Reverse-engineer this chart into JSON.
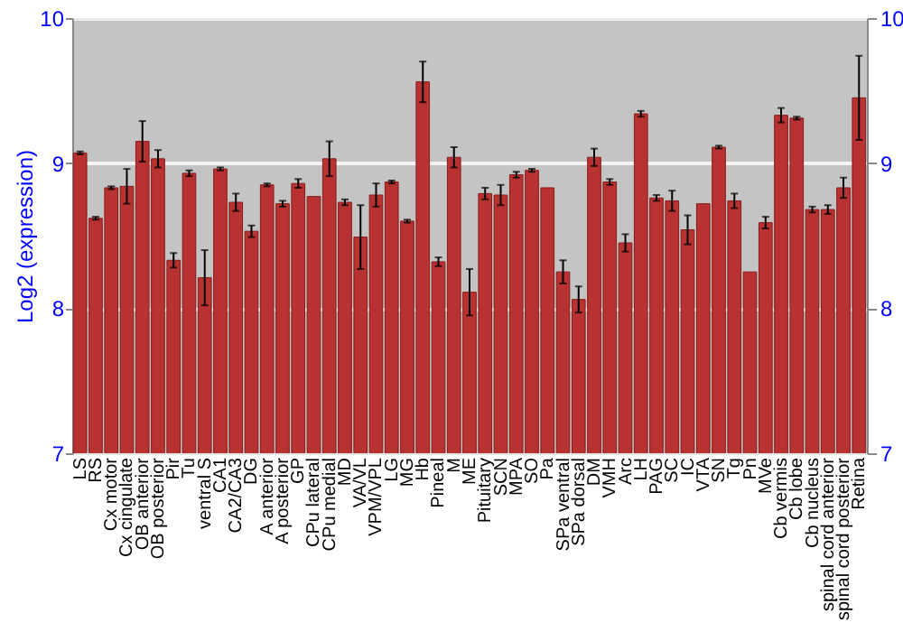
{
  "chart_data": {
    "type": "bar",
    "ylabel": "Log2 (expression)",
    "categories": [
      "LS",
      "RS",
      "Cx motor",
      "Cx cingulate",
      "OB anterior",
      "OB posterior",
      "Pir",
      "Tu",
      "ventral S",
      "CA1",
      "CA2/CA3",
      "DG",
      "A anterior",
      "A posterior",
      "GP",
      "CPu lateral",
      "CPu medial",
      "MD",
      "VA/VL",
      "VPM/VPL",
      "LG",
      "MG",
      "Hb",
      "Pineal",
      "M",
      "ME",
      "Pituitary",
      "SCN",
      "MPA",
      "SO",
      "Pa",
      "SPa ventral",
      "SPa dorsal",
      "DM",
      "VMH",
      "Arc",
      "LH",
      "PAG",
      "SC",
      "IC",
      "VTA",
      "SN",
      "Tg",
      "Pn",
      "MVe",
      "Cb vermis",
      "Cb lobe",
      "Cb nucleus",
      "spinal cord anterior",
      "spinal cord posterior",
      "Retina"
    ],
    "series": [
      {
        "color": "#b83232",
        "values": [
          9.07,
          8.62,
          8.83,
          8.84,
          9.15,
          9.03,
          8.33,
          8.93,
          8.21,
          8.96,
          8.73,
          8.53,
          8.85,
          8.72,
          8.86,
          8.77,
          9.03,
          8.73,
          8.49,
          8.78,
          8.87,
          8.6,
          9.56,
          8.32,
          9.04,
          8.11,
          8.79,
          8.78,
          8.92,
          8.95,
          8.83,
          8.25,
          8.06,
          9.04,
          8.87,
          8.45,
          9.34,
          8.76,
          8.74,
          8.54,
          8.72,
          9.11,
          8.74,
          8.25,
          8.59,
          9.33,
          9.31,
          8.68,
          8.68,
          8.83,
          9.45
        ],
        "errors": [
          0.01,
          0.01,
          0.01,
          0.12,
          0.14,
          0.06,
          0.05,
          0.02,
          0.19,
          0.01,
          0.06,
          0.04,
          0.01,
          0.02,
          0.03,
          null,
          0.12,
          0.02,
          0.22,
          0.08,
          0.01,
          0.01,
          0.14,
          0.03,
          0.07,
          0.16,
          0.04,
          0.07,
          0.02,
          0.01,
          null,
          0.08,
          0.09,
          0.06,
          0.02,
          0.06,
          0.02,
          0.02,
          0.07,
          0.1,
          null,
          0.01,
          0.05,
          null,
          0.04,
          0.05,
          0.01,
          0.02,
          0.03,
          0.07,
          0.29
        ]
      }
    ],
    "ylim": [
      7,
      10
    ],
    "yticks": [
      7,
      8,
      9,
      10
    ],
    "y2lim": [
      7,
      10
    ],
    "y2ticks": [
      7,
      8,
      9,
      10
    ],
    "grid": "y"
  }
}
